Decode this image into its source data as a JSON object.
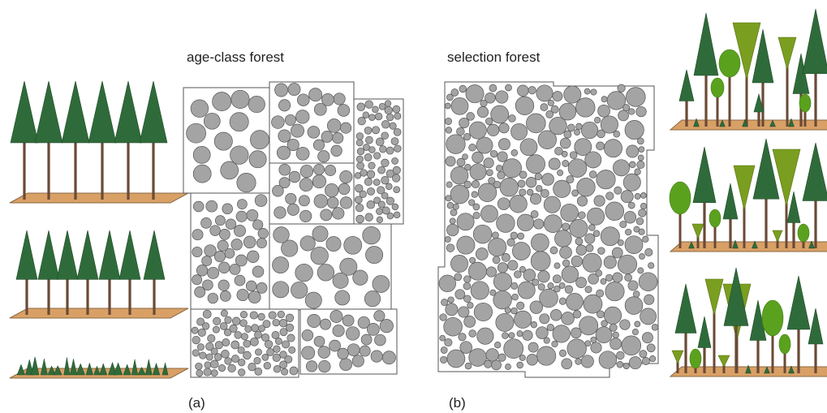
{
  "figure": {
    "panel_a": {
      "title": "age-class forest",
      "letter": "(a)"
    },
    "panel_b": {
      "title": "selection forest",
      "letter": "(b)"
    }
  },
  "colors": {
    "conifer_dark": "#2f6b3a",
    "conifer_light": "#7a9e1f",
    "broadleaf": "#5aa21e",
    "trunk": "#6b4a36",
    "ground": "#d9a066",
    "ground_edge": "#8a6a44",
    "crown_fill": "#a4a4a4",
    "crown_stroke": "#555555",
    "stand_border": "#555555"
  },
  "icons": [
    "conifer-tree-icon",
    "broadleaf-tree-icon",
    "inverted-cone-tree-icon",
    "sapling-icon"
  ]
}
